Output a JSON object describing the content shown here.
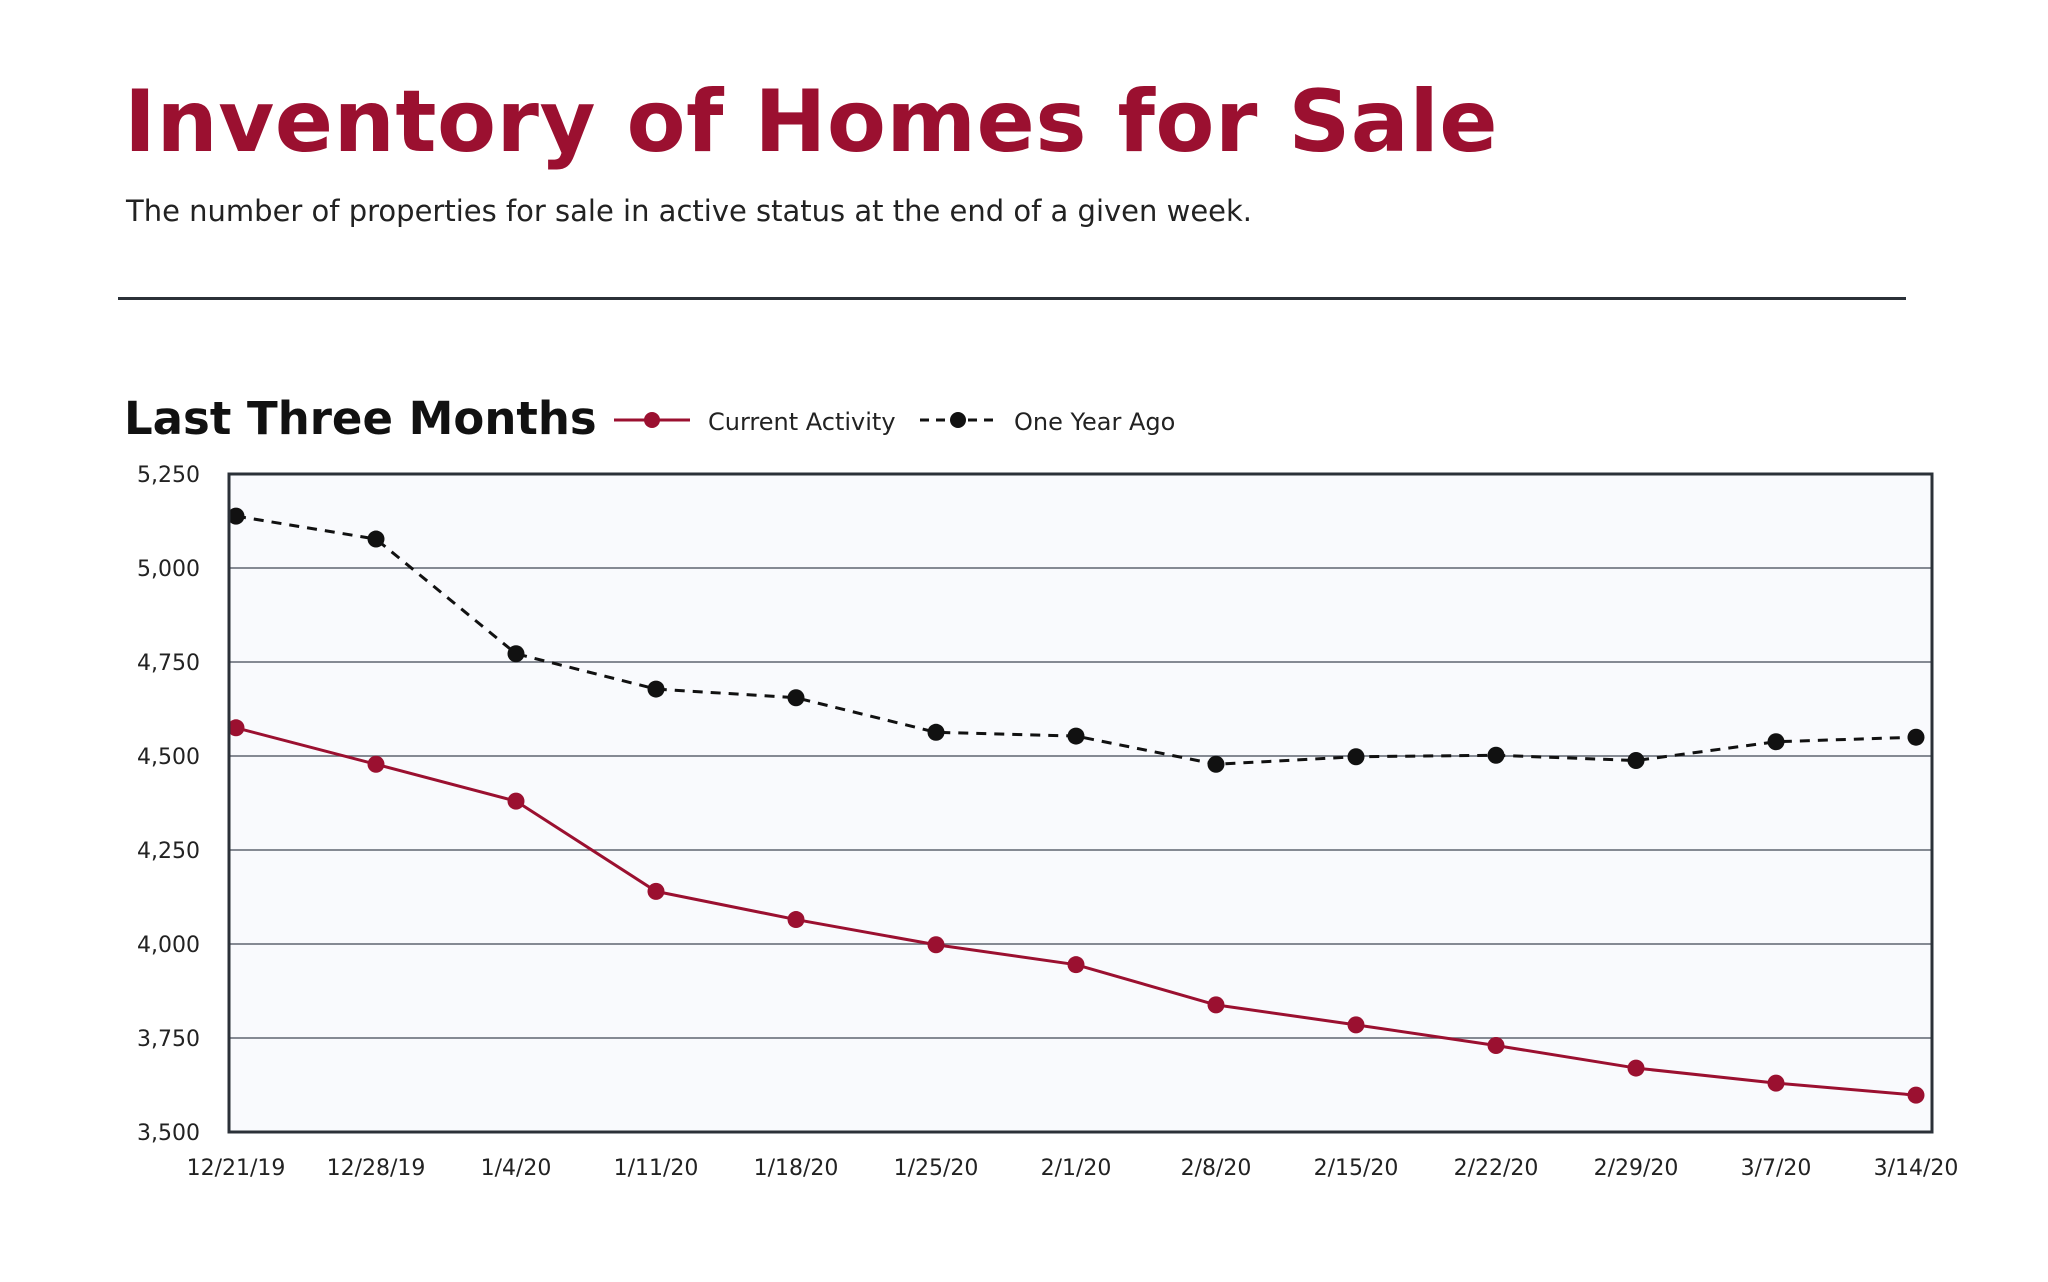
{
  "page": {
    "title": "Inventory of Homes for Sale",
    "subtitle": "The number of properties for sale in active status at the end of a given week."
  },
  "colors": {
    "title": "#9b1030",
    "current": "#9b1030",
    "one_year_ago": "#111111",
    "plot_background": "#f9fafd",
    "grid": "#5f6470",
    "frame": "#2b3138"
  },
  "chart_data": {
    "type": "line",
    "title": "Last Three Months",
    "xlabel": "",
    "ylabel": "",
    "categories": [
      "12/21/19",
      "12/28/19",
      "1/4/20",
      "1/11/20",
      "1/18/20",
      "1/25/20",
      "2/1/20",
      "2/8/20",
      "2/15/20",
      "2/22/20",
      "2/29/20",
      "3/7/20",
      "3/14/20"
    ],
    "ylim": [
      3500,
      5250
    ],
    "yticks": [
      3500,
      3750,
      4000,
      4250,
      4500,
      4750,
      5000,
      5250
    ],
    "ytick_labels": [
      "3,500",
      "3,750",
      "4,000",
      "4,250",
      "4,500",
      "4,750",
      "5,000",
      "5,250"
    ],
    "grid": true,
    "legend_position": "top",
    "series": [
      {
        "name": "Current Activity",
        "style": "solid",
        "values": [
          4575,
          4478,
          4380,
          4140,
          4065,
          3998,
          3945,
          3838,
          3785,
          3730,
          3670,
          3630,
          3598
        ]
      },
      {
        "name": "One Year Ago",
        "style": "dashed",
        "values": [
          5138,
          5077,
          4772,
          4678,
          4655,
          4563,
          4553,
          4478,
          4498,
          4502,
          4488,
          4538,
          4550
        ]
      }
    ]
  }
}
